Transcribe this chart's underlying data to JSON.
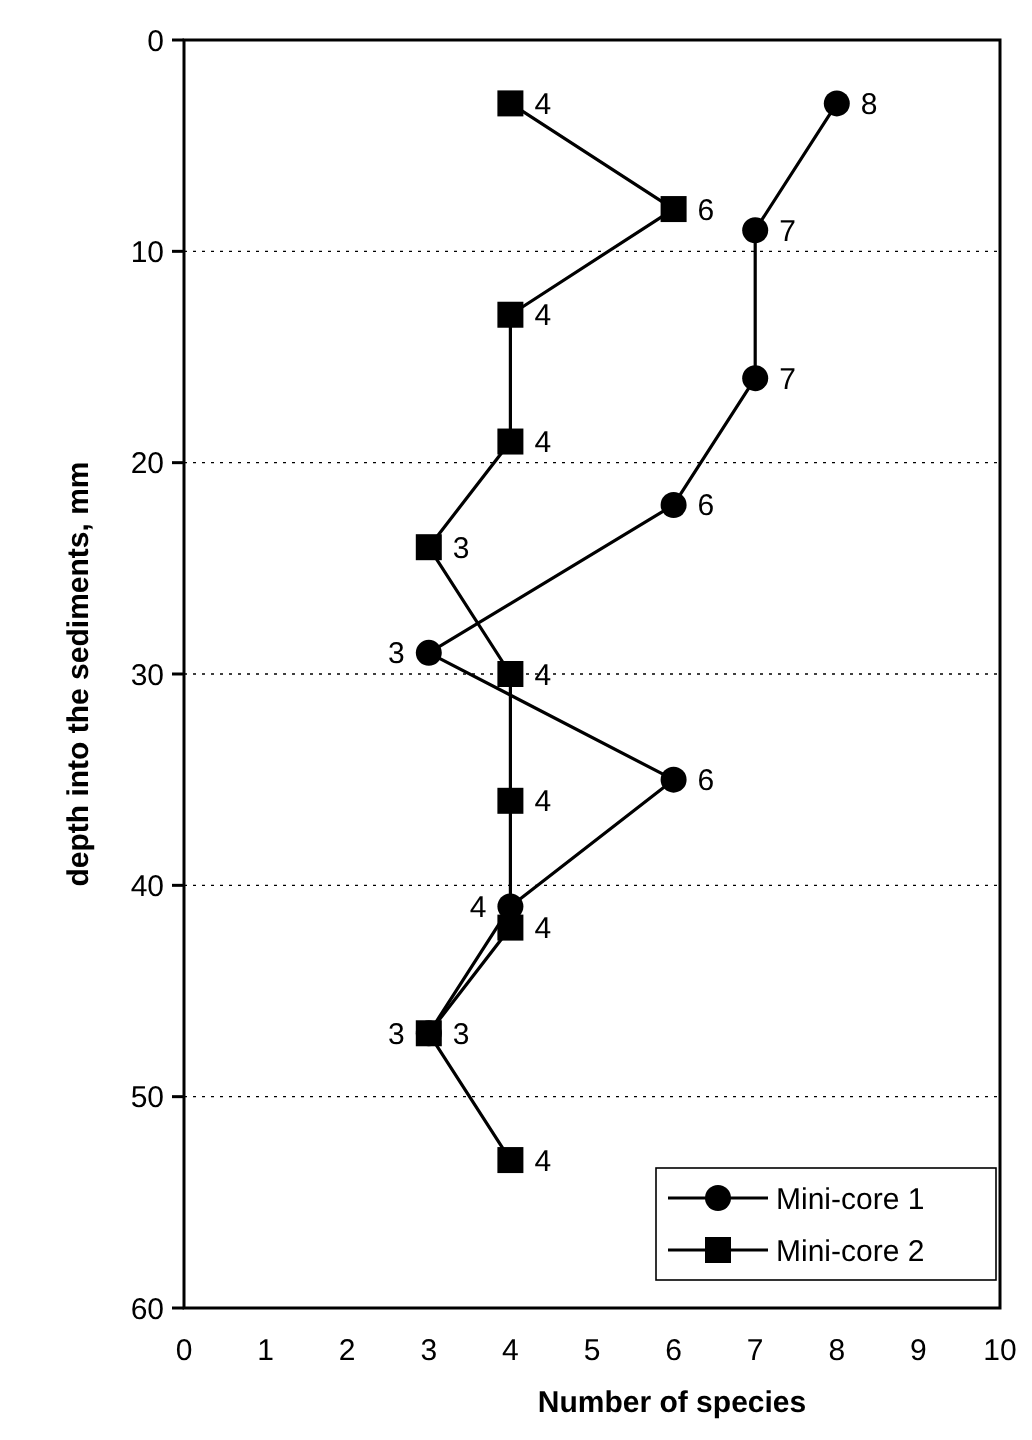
{
  "chart_data": {
    "type": "line",
    "orientation": "horizontal",
    "xlabel": "Number of species",
    "ylabel": "depth into the sediments, mm",
    "xlim": [
      0,
      10
    ],
    "xticks": [
      0,
      1,
      2,
      3,
      4,
      5,
      6,
      7,
      8,
      9,
      10
    ],
    "ylim": [
      60,
      0
    ],
    "yticks": [
      0,
      10,
      20,
      30,
      40,
      50,
      60
    ],
    "grid": "y",
    "legend": "bottom right",
    "line_style": "solid",
    "series": [
      {
        "name": "Mini-core 1",
        "color": "#000000",
        "marker": "circle",
        "x": [
          3,
          9,
          16,
          22,
          29,
          35,
          41,
          47
        ],
        "values": [
          8,
          7,
          7,
          6,
          3,
          6,
          4,
          3
        ],
        "data_labels": true
      },
      {
        "name": "Mini-core 2",
        "color": "#000000",
        "marker": "square",
        "x": [
          3,
          8,
          13,
          19,
          24,
          30,
          36,
          42,
          47,
          53
        ],
        "values": [
          4,
          6,
          4,
          4,
          3,
          4,
          4,
          4,
          3,
          4
        ],
        "data_labels": true
      }
    ]
  }
}
